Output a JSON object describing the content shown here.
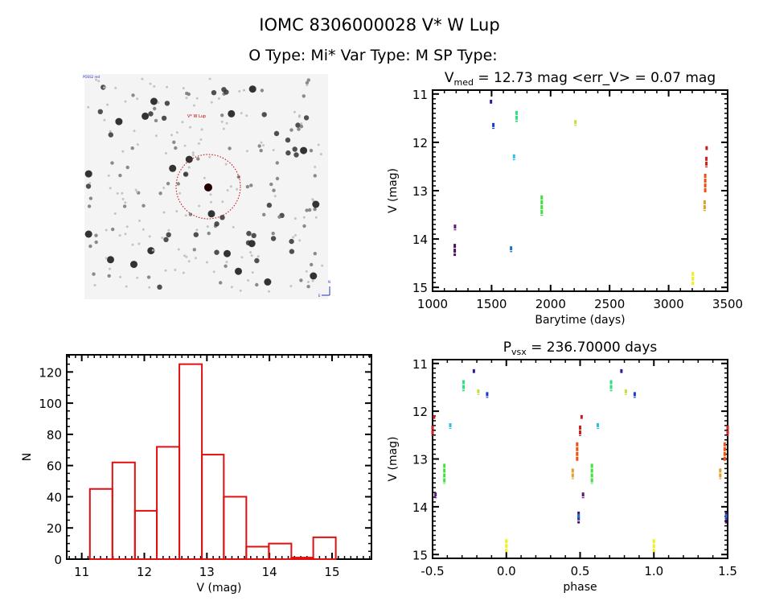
{
  "header": {
    "title": "IOMC 8306000028   V* W Lup",
    "subtitle": "O Type: Mi*  Var Type: M  SP Type:"
  },
  "image_panel": {
    "target_label": "V* W Lup",
    "corner_labels": [
      "POSS2 red",
      "N",
      "E"
    ]
  },
  "chart_data": [
    {
      "id": "lightcurve",
      "type": "scatter",
      "title": "V_med = 12.73 mag <err_V> = 0.07 mag",
      "title_parts": {
        "main": "V",
        "sub": "med",
        "rest": " = 12.73 mag <err_V> = 0.07 mag"
      },
      "xlabel": "Barytime (days)",
      "ylabel": "V (mag)",
      "xlim": [
        1000,
        3500
      ],
      "ylim": [
        10.92,
        15.08
      ],
      "y_inverted": true,
      "xticks": [
        "1000",
        "1500",
        "2000",
        "2500",
        "3000",
        "3500"
      ],
      "yticks": [
        "11",
        "12",
        "13",
        "14",
        "15"
      ],
      "segments": [
        {
          "t": 1190,
          "v": [
            13.7,
            13.82
          ],
          "phase": 0.52,
          "color": "#5a1a7a"
        },
        {
          "t": 1188,
          "v": [
            14.1,
            14.35
          ],
          "phase": 0.49,
          "color": "#4a1060"
        },
        {
          "t": 1495,
          "v": [
            11.12,
            11.2
          ],
          "phase": 0.78,
          "color": "#2a1aa0"
        },
        {
          "t": 1515,
          "v": [
            11.6,
            11.72
          ],
          "phase": 0.87,
          "color": "#1a3ad0"
        },
        {
          "t": 1665,
          "v": [
            14.15,
            14.27
          ],
          "phase": 0.49,
          "color": "#1a70d0"
        },
        {
          "t": 1690,
          "v": [
            12.25,
            12.37
          ],
          "phase": 0.62,
          "color": "#30c0e0"
        },
        {
          "t": 1712,
          "v": [
            11.35,
            11.58
          ],
          "phase": 0.71,
          "color": "#30e080"
        },
        {
          "t": 1925,
          "v": [
            13.1,
            13.52
          ],
          "phase": 0.58,
          "color": "#40e040"
        },
        {
          "t": 2210,
          "v": [
            11.54,
            11.66
          ],
          "phase": 0.81,
          "color": "#c0e040"
        },
        {
          "t": 3205,
          "v": [
            14.68,
            14.95
          ],
          "phase": 0.0,
          "color": "#f0f020"
        },
        {
          "t": 3305,
          "v": [
            13.2,
            13.42
          ],
          "phase": 0.45,
          "color": "#e0a030"
        },
        {
          "t": 3310,
          "v": [
            12.65,
            13.05
          ],
          "phase": 0.48,
          "color": "#f05010"
        },
        {
          "t": 3320,
          "v": [
            12.3,
            12.52
          ],
          "phase": 0.5,
          "color": "#d02020"
        },
        {
          "t": 3322,
          "v": [
            12.08,
            12.16
          ],
          "phase": 0.51,
          "color": "#c02020"
        }
      ]
    },
    {
      "id": "phased",
      "type": "scatter",
      "title": "P_vsx = 236.70000 days",
      "title_parts": {
        "main": "P",
        "sub": "vsx",
        "rest": " = 236.70000 days"
      },
      "xlabel": "phase",
      "ylabel": "V (mag)",
      "xlim": [
        -0.5,
        1.5
      ],
      "ylim": [
        10.92,
        15.08
      ],
      "y_inverted": true,
      "xticks": [
        "-0.5",
        "0.0",
        "0.5",
        "1.0",
        "1.5"
      ],
      "yticks": [
        "11",
        "12",
        "13",
        "14",
        "15"
      ]
    },
    {
      "id": "histogram",
      "type": "bar",
      "title": "",
      "xlabel": "V (mag)",
      "ylabel": "N",
      "xlim": [
        10.76,
        15.63
      ],
      "ylim": [
        0,
        131
      ],
      "xticks": [
        "11",
        "12",
        "13",
        "14",
        "15"
      ],
      "yticks": [
        "0",
        "20",
        "40",
        "60",
        "80",
        "100",
        "120"
      ],
      "bin_edges": [
        11.13,
        11.49,
        11.85,
        12.2,
        12.56,
        12.92,
        13.27,
        13.63,
        13.99,
        14.35,
        14.7,
        15.06
      ],
      "values": [
        45,
        62,
        31,
        72,
        125,
        67,
        40,
        8,
        10,
        1,
        14
      ],
      "color": "#e01010"
    }
  ]
}
